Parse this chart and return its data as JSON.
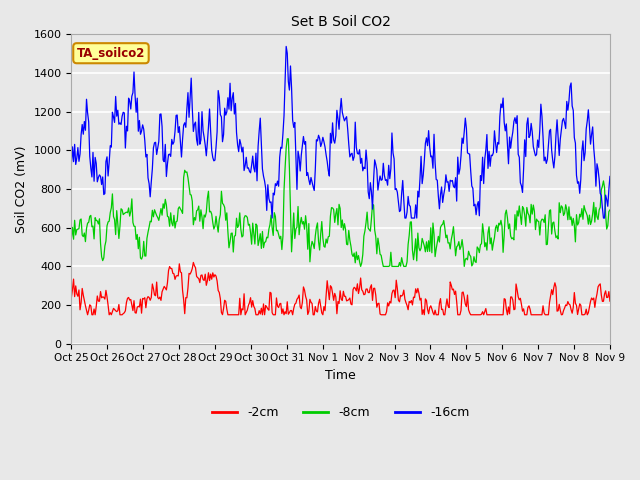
{
  "title": "Set B Soil CO2",
  "xlabel": "Time",
  "ylabel": "Soil CO2 (mV)",
  "ylim": [
    0,
    1600
  ],
  "yticks": [
    0,
    200,
    400,
    600,
    800,
    1000,
    1200,
    1400,
    1600
  ],
  "xtick_labels": [
    "Oct 25",
    "Oct 26",
    "Oct 27",
    "Oct 28",
    "Oct 29",
    "Oct 30",
    "Oct 31",
    "Nov 1",
    "Nov 2",
    "Nov 3",
    "Nov 4",
    "Nov 5",
    "Nov 6",
    "Nov 7",
    "Nov 8",
    "Nov 9"
  ],
  "legend_labels": [
    "-2cm",
    "-8cm",
    "-16cm"
  ],
  "legend_colors": [
    "#ff0000",
    "#00cc00",
    "#0000ff"
  ],
  "line_colors": [
    "#ff0000",
    "#00cc00",
    "#0000ff"
  ],
  "annotation_text": "TA_soilco2",
  "annotation_bg": "#ffff99",
  "annotation_border": "#cc8800",
  "plot_bg_color": "#e8e8e8",
  "fig_bg_color": "#e8e8e8",
  "grid_color": "#ffffff",
  "n_points": 500,
  "seed": 7
}
